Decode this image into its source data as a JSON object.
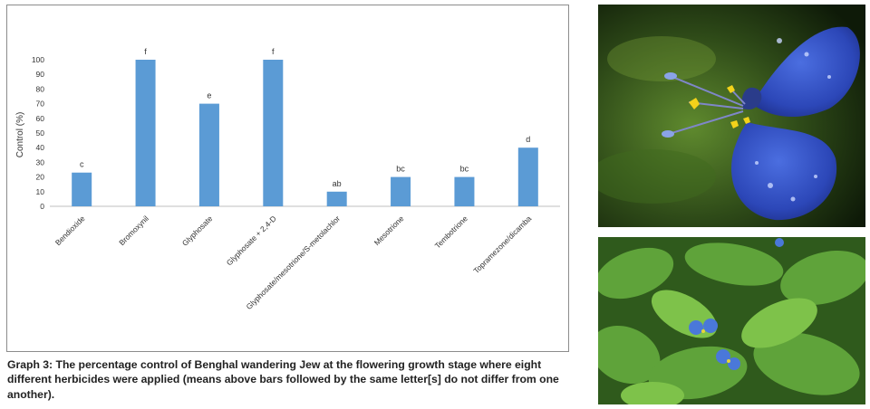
{
  "chart_data": {
    "type": "bar",
    "categories": [
      "Bendioxide",
      "Bromoxynil",
      "Glyphosate",
      "Glyphosate + 2,4-D",
      "Glyphosate/mesotrione/S-metolachlor",
      "Mesotrione",
      "Tembotrione",
      "Topramezone/dicamba"
    ],
    "values": [
      23,
      100,
      70,
      100,
      10,
      20,
      20,
      40
    ],
    "significance_letters": [
      "c",
      "f",
      "e",
      "f",
      "ab",
      "bc",
      "bc",
      "d"
    ],
    "ylabel": "Control (%)",
    "ylim": [
      0,
      100
    ],
    "yticks": [
      0,
      10,
      20,
      30,
      40,
      50,
      60,
      70,
      80,
      90,
      100
    ],
    "grid": false,
    "bar_color": "#5b9bd5"
  },
  "caption": "Graph 3: The percentage control of Benghal wandering Jew at the flowering growth stage where eight different herbicides were applied (means above bars followed by the same letter[s] do not differ from one another).",
  "photos": [
    {
      "icon": "flower-closeup-photo"
    },
    {
      "icon": "plant-foliage-photo"
    }
  ]
}
